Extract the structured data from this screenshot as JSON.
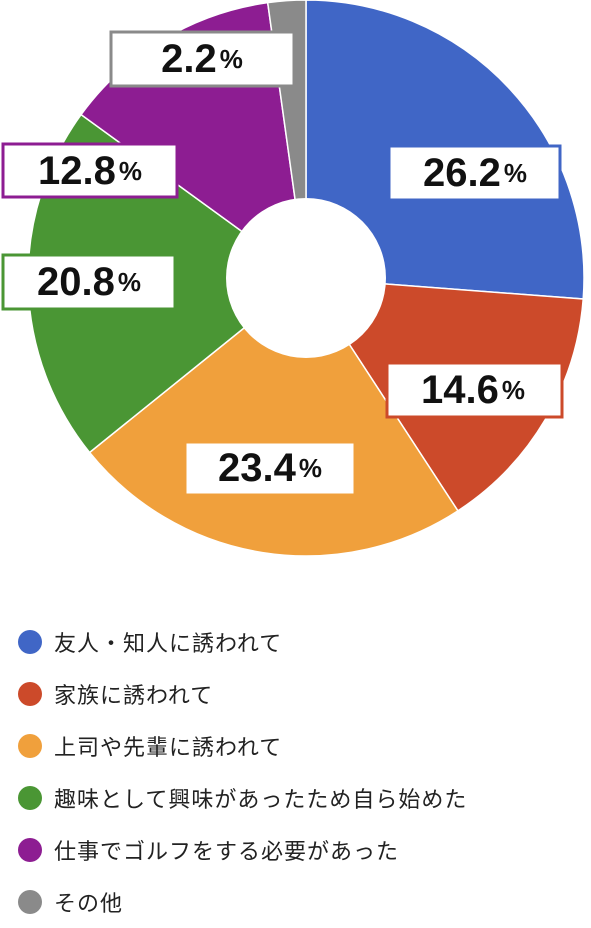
{
  "chart_data": {
    "type": "pie",
    "donut": true,
    "unit": "%",
    "start_angle_deg": 0,
    "direction": "clockwise",
    "categories": [
      "友人・知人に誘われて",
      "家族に誘われて",
      "上司や先輩に誘われて",
      "趣味として興味があったため自ら始めた",
      "仕事でゴルフをする必要があった",
      "その他"
    ],
    "values": [
      26.2,
      14.6,
      23.4,
      20.8,
      12.8,
      2.2
    ],
    "value_labels": [
      "26.2",
      "14.6",
      "23.4",
      "20.8",
      "12.8",
      "2.2"
    ],
    "colors": [
      "#4066C6",
      "#CC4A2A",
      "#F0A03C",
      "#4A9634",
      "#8D1D92",
      "#8A8A8A"
    ],
    "legend_position": "bottom-left"
  }
}
